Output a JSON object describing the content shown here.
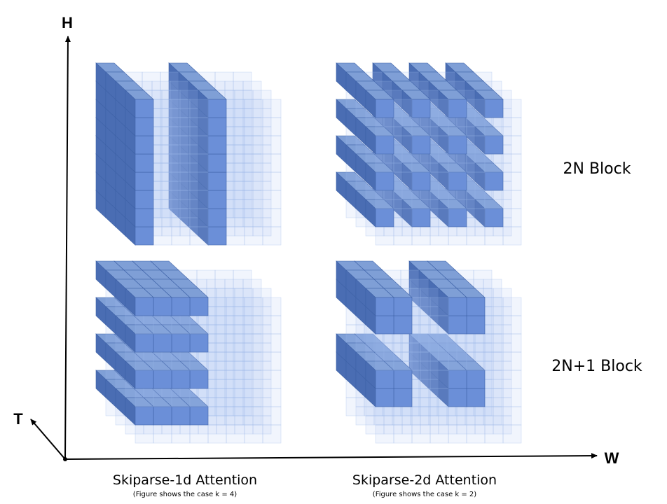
{
  "axes": {
    "vertical": "H",
    "horizontal": "W",
    "depth": "T"
  },
  "rows": [
    "2N Block",
    "2N+1 Block"
  ],
  "columns": [
    {
      "title": "Skiparse-1d Attention",
      "caption": "(Figure shows the case k = 4)"
    },
    {
      "title": "Skiparse-2d Attention",
      "caption": "(Figure shows the case k = 2)"
    }
  ]
}
